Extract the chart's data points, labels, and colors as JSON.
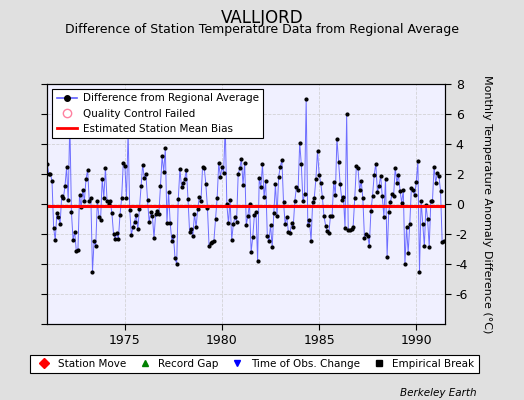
{
  "title": "VALLJORD",
  "subtitle": "Difference of Station Temperature Data from Regional Average",
  "ylabel_right": "Monthly Temperature Anomaly Difference (°C)",
  "ylim": [
    -8,
    8
  ],
  "xlim": [
    1971.0,
    1991.5
  ],
  "xticks": [
    1975,
    1980,
    1985,
    1990
  ],
  "yticks": [
    -6,
    -4,
    -2,
    0,
    2,
    4,
    6,
    8
  ],
  "yticks_left": [
    -8,
    -6,
    -4,
    -2,
    0,
    2,
    4,
    6,
    8
  ],
  "bias": -0.1,
  "line_color": "#6060ff",
  "bias_color": "red",
  "marker_color": "black",
  "fig_bg_color": "#e0e0e0",
  "plot_bg_color": "#f0f0ff",
  "footer": "Berkeley Earth",
  "seed": 42,
  "title_fontsize": 12,
  "subtitle_fontsize": 9,
  "tick_fontsize": 9,
  "ylabel_fontsize": 8
}
